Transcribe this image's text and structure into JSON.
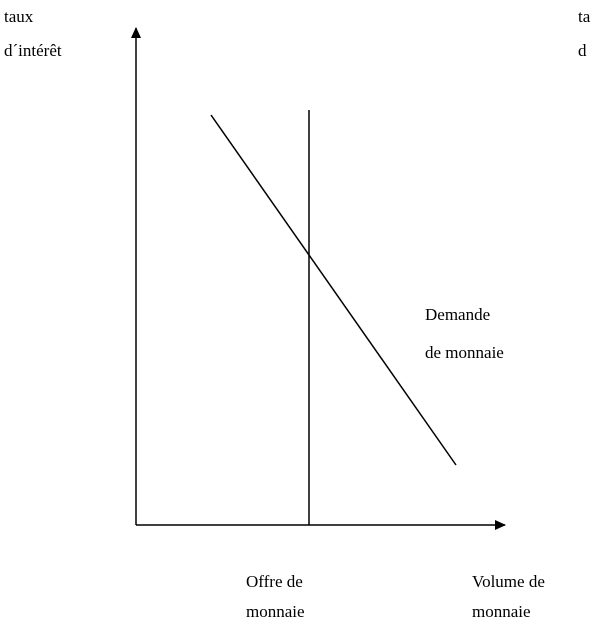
{
  "y_axis": {
    "label": [
      "taux",
      "d´intérêt"
    ]
  },
  "x_axis": {
    "label": [
      "Volume de",
      "monnaie"
    ]
  },
  "supply": {
    "label": [
      "Offre de",
      "monnaie"
    ]
  },
  "demand": {
    "label": [
      "Demande",
      "de monnaie"
    ]
  },
  "cropped_label": [
    "ta",
    "d"
  ]
}
